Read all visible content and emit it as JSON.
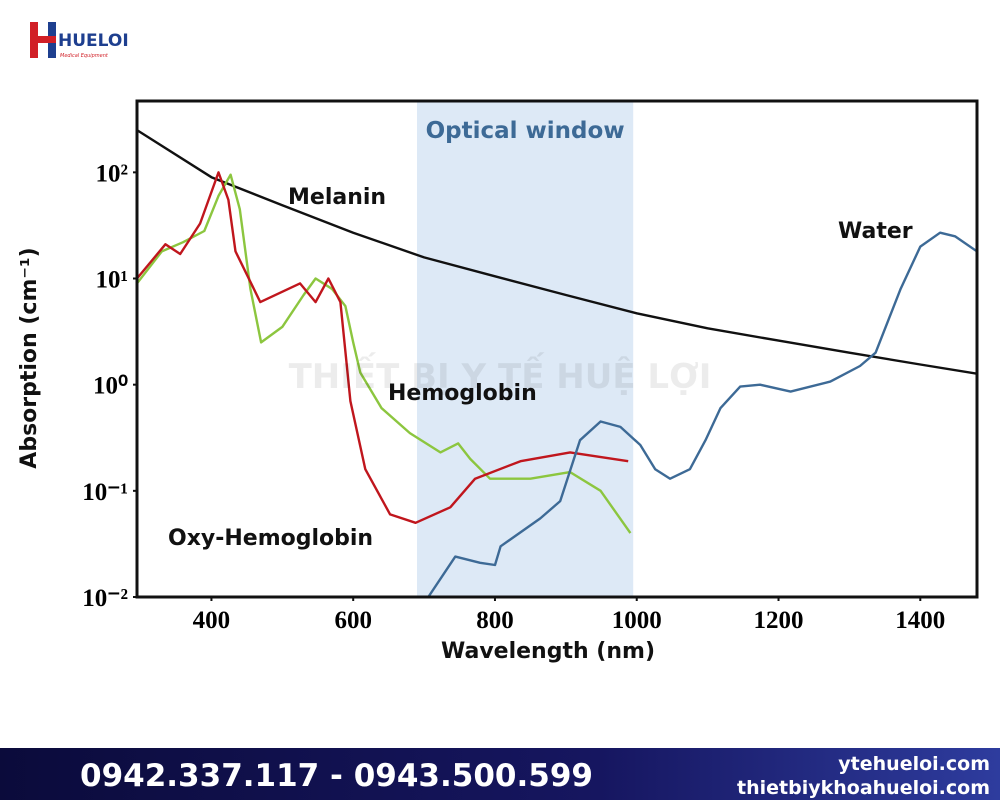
{
  "header": {
    "logo": "HUELOI",
    "logo_sub": "Medical Equipment"
  },
  "watermark": "THIẾT BỊ Y TẾ HUỆ LỢI",
  "footer": {
    "phones": "0942.337.117 - 0943.500.599",
    "sites": [
      "ytehueloi.com",
      "thietbiykhoahueloi.com"
    ]
  },
  "chart_data": {
    "type": "line",
    "log_y": true,
    "xlabel": "Wavelength (nm)",
    "ylabel": "Absorption (cm⁻¹)",
    "xlim": [
      295,
      1480
    ],
    "ylim": [
      0.01,
      470
    ],
    "xticks": [
      400,
      600,
      800,
      1000,
      1200,
      1400
    ],
    "yticks": [
      {
        "value": 0.01,
        "label": "10⁻²"
      },
      {
        "value": 0.1,
        "label": "10⁻¹"
      },
      {
        "value": 1,
        "label": "10⁰"
      },
      {
        "value": 10,
        "label": "10¹"
      },
      {
        "value": 100,
        "label": "10²"
      }
    ],
    "shaded_region": {
      "label": "Optical window",
      "x": [
        690,
        995
      ],
      "color": "#dde9f6"
    },
    "series": [
      {
        "name": "Melanin",
        "color": "#111111",
        "x": [
          295,
          400,
          500,
          600,
          700,
          800,
          900,
          1000,
          1100,
          1200,
          1300,
          1400,
          1480
        ],
        "values": [
          250,
          90,
          49,
          27,
          15.8,
          10.5,
          7,
          4.7,
          3.4,
          2.6,
          2,
          1.55,
          1.27
        ]
      },
      {
        "name": "Hemoglobin",
        "color": "#8cc63f",
        "x": [
          295,
          330,
          360,
          390,
          410,
          427,
          440,
          455,
          470,
          500,
          530,
          547,
          570,
          589,
          600,
          610,
          640,
          680,
          723,
          748,
          765,
          793,
          850,
          906,
          949,
          991
        ],
        "values": [
          9,
          18,
          22,
          28,
          60,
          95,
          45,
          8,
          2.5,
          3.5,
          7,
          10,
          8,
          5.5,
          2.5,
          1.3,
          0.6,
          0.35,
          0.23,
          0.28,
          0.2,
          0.13,
          0.13,
          0.15,
          0.1,
          0.04
        ]
      },
      {
        "name": "Oxy-Hemoglobin",
        "color": "#c0161d",
        "x": [
          295,
          335,
          356,
          384,
          410,
          424,
          434,
          469,
          525,
          547,
          565,
          582,
          596,
          617,
          652,
          688,
          737,
          772,
          836,
          906,
          988
        ],
        "values": [
          10,
          21,
          17,
          33,
          100,
          55,
          18,
          6,
          9,
          6,
          10,
          6,
          0.7,
          0.16,
          0.06,
          0.05,
          0.07,
          0.13,
          0.19,
          0.23,
          0.19
        ]
      },
      {
        "name": "Water",
        "color": "#3d6a96",
        "x": [
          706,
          744,
          779,
          800,
          808,
          864,
          892,
          920,
          949,
          977,
          1005,
          1026,
          1047,
          1075,
          1097,
          1118,
          1146,
          1174,
          1217,
          1273,
          1315,
          1337,
          1372,
          1400,
          1428,
          1449,
          1480
        ],
        "values": [
          0.01,
          0.024,
          0.021,
          0.02,
          0.03,
          0.055,
          0.08,
          0.3,
          0.45,
          0.4,
          0.27,
          0.16,
          0.13,
          0.16,
          0.3,
          0.6,
          0.96,
          1.0,
          0.86,
          1.07,
          1.5,
          2.0,
          7.9,
          20,
          27,
          25,
          18
        ]
      }
    ]
  }
}
